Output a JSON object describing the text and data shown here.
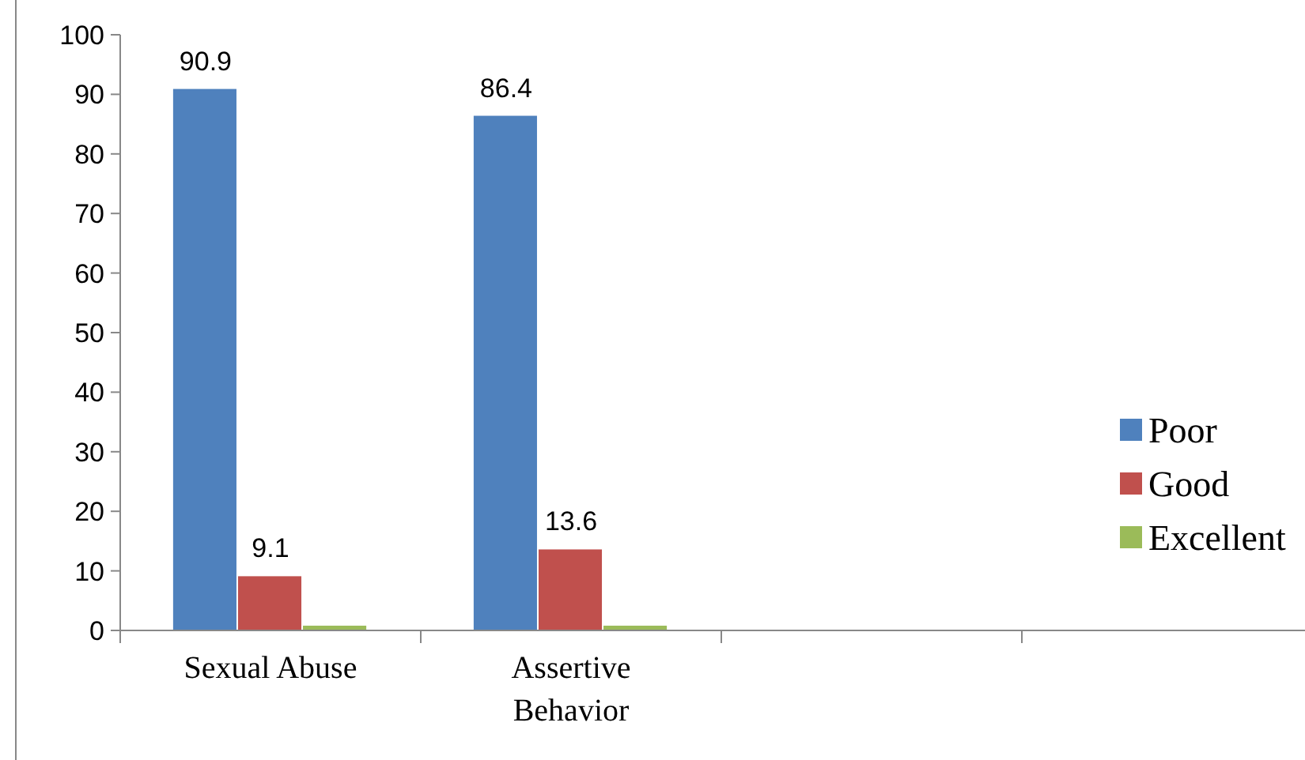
{
  "chart_data": {
    "type": "bar",
    "categories": [
      "Sexual Abuse",
      "Assertive Behavior",
      null,
      null
    ],
    "series": [
      {
        "name": "Poor",
        "color": "#4f81bd",
        "values": [
          90.9,
          86.4,
          null,
          null
        ],
        "value_labels": [
          "90.9",
          "86.4",
          null,
          null
        ]
      },
      {
        "name": "Good",
        "color": "#c0504d",
        "values": [
          9.1,
          13.6,
          null,
          null
        ],
        "value_labels": [
          "9.1",
          "13.6",
          null,
          null
        ]
      },
      {
        "name": "Excellent",
        "color": "#9bbb59",
        "values": [
          0.8,
          0.8,
          null,
          null
        ],
        "value_labels": [
          null,
          null,
          null,
          null
        ]
      }
    ],
    "ylim": [
      0,
      100
    ],
    "yticks": [
      0,
      10,
      20,
      30,
      40,
      50,
      60,
      70,
      80,
      90,
      100
    ],
    "grid": false,
    "legend": "right"
  }
}
